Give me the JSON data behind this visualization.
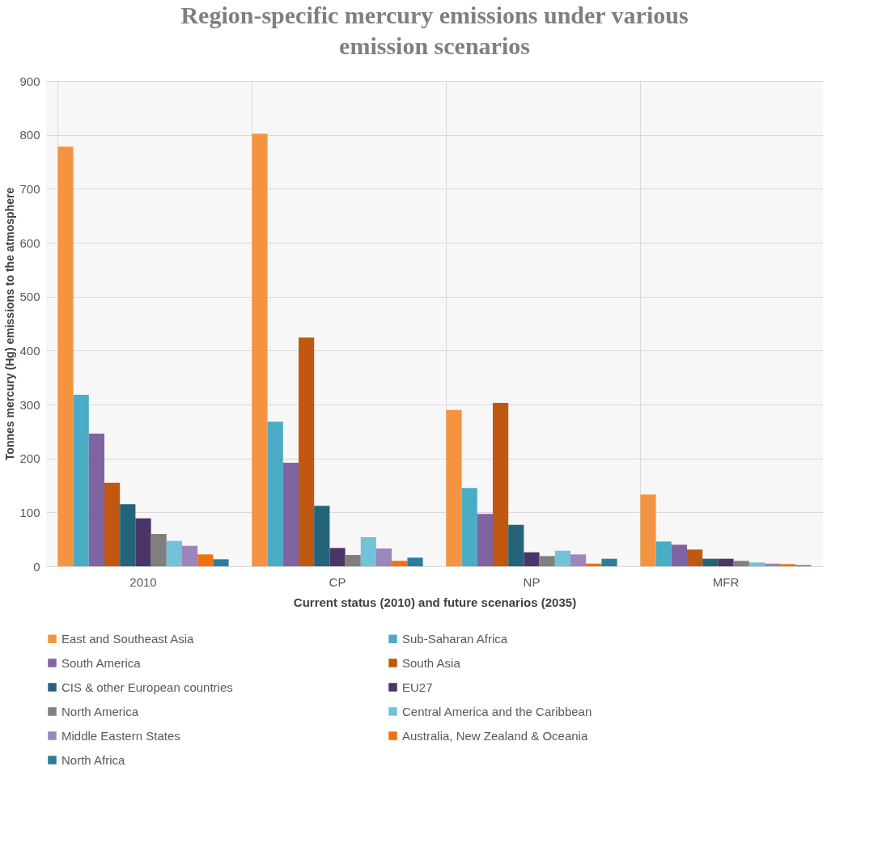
{
  "chart_data": {
    "type": "bar",
    "title": "Region-specific mercury emissions under various emission scenarios",
    "xlabel": "Current status (2010) and future scenarios (2035)",
    "ylabel": "Tonnes mercury (Hg) emissions to the atmosphere",
    "categories": [
      "2010",
      "CP",
      "NP",
      "MFR"
    ],
    "series": [
      {
        "name": "East and Southeast Asia",
        "color": "#f59440",
        "values": [
          778,
          802,
          290,
          133
        ]
      },
      {
        "name": "Sub-Saharan Africa",
        "color": "#4bacc6",
        "values": [
          318,
          268,
          145,
          46
        ]
      },
      {
        "name": "South America",
        "color": "#8064a2",
        "values": [
          246,
          192,
          97,
          40
        ]
      },
      {
        "name": "South Asia",
        "color": "#c0590f",
        "values": [
          155,
          424,
          303,
          31
        ]
      },
      {
        "name": "CIS & other European countries",
        "color": "#23647a",
        "values": [
          115,
          112,
          77,
          14
        ]
      },
      {
        "name": "EU27",
        "color": "#4a3566",
        "values": [
          89,
          34,
          26,
          14
        ]
      },
      {
        "name": "North America",
        "color": "#7f7f7f",
        "values": [
          60,
          21,
          19,
          10
        ]
      },
      {
        "name": "Central America and the Caribbean",
        "color": "#73c2d9",
        "values": [
          47,
          54,
          29,
          7
        ]
      },
      {
        "name": "Middle Eastern States",
        "color": "#9c86bc",
        "values": [
          38,
          33,
          22,
          5
        ]
      },
      {
        "name": "Australia, New Zealand & Oceania",
        "color": "#f0700f",
        "values": [
          22,
          10,
          5,
          4
        ]
      },
      {
        "name": "North Africa",
        "color": "#2c7c9b",
        "values": [
          13,
          16,
          14,
          2
        ]
      }
    ],
    "ylim": [
      0,
      900
    ],
    "yticks": [
      0,
      100,
      200,
      300,
      400,
      500,
      600,
      700,
      800,
      900
    ],
    "grid": true,
    "legend": "bottom"
  }
}
